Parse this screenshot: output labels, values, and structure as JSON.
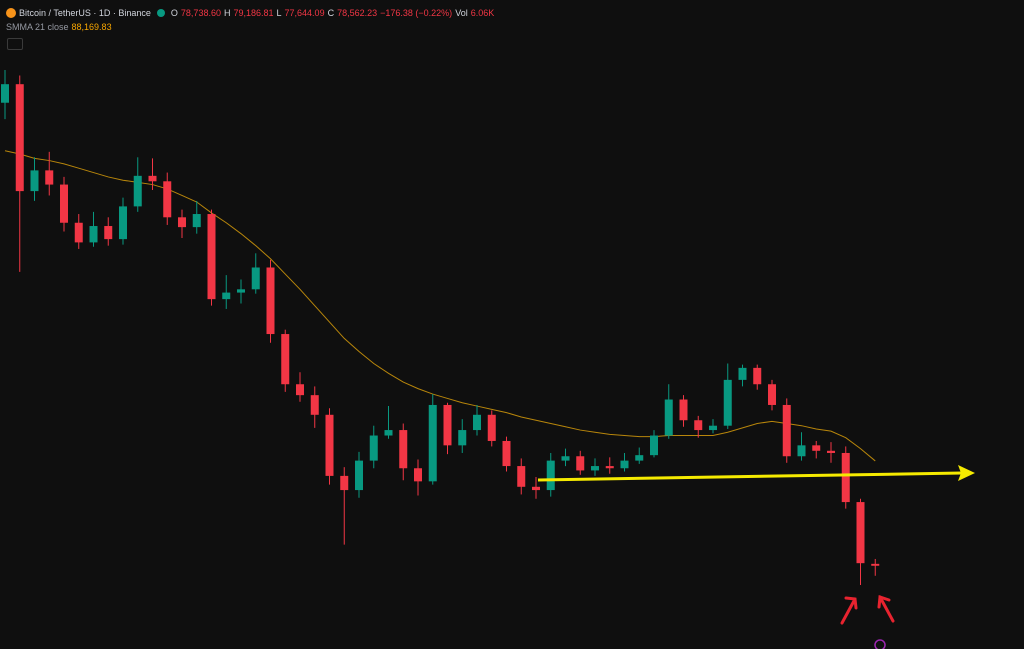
{
  "header": {
    "symbol": "Bitcoin / TetherUS · 1D · Binance",
    "o_label": "O",
    "open": "78,738.60",
    "h_label": "H",
    "high": "79,186.81",
    "l_label": "L",
    "low": "77,644.09",
    "c_label": "C",
    "close": "78,562.23",
    "change": "−176.38 (−0.22%)",
    "vol_label": "Vol",
    "volume": "6.06K",
    "indicator": "SMMA 21 close",
    "indicator_value": "88,169.83"
  },
  "chart_data": {
    "type": "candlestick",
    "up_color": "#089981",
    "down_color": "#f23645",
    "open": [
      121000,
      122700,
      112900,
      114800,
      113500,
      110000,
      108200,
      109700,
      108500,
      111500,
      114300,
      113800,
      110500,
      109600,
      110800,
      103000,
      103600,
      103900,
      105900,
      99800,
      95200,
      94200,
      92400,
      86800,
      85500,
      88200,
      90500,
      91000,
      87500,
      86300,
      93300,
      89600,
      91000,
      92400,
      90000,
      87700,
      85800,
      85500,
      88200,
      88600,
      87300,
      87700,
      87500,
      88200,
      88700,
      90500,
      93800,
      91900,
      91000,
      91400,
      95600,
      96700,
      95200,
      93300,
      88600,
      89600,
      89100,
      88900,
      84400,
      78738.6
    ],
    "high": [
      124000,
      123500,
      116000,
      116500,
      114200,
      110800,
      111000,
      110500,
      112300,
      116000,
      115900,
      114600,
      111200,
      112000,
      111200,
      105200,
      104800,
      107200,
      106600,
      100200,
      96300,
      95000,
      93000,
      87600,
      89000,
      91400,
      93200,
      91600,
      88300,
      94300,
      93500,
      92000,
      93300,
      92800,
      90400,
      88400,
      86700,
      88900,
      89300,
      89100,
      88400,
      88500,
      88900,
      89400,
      91000,
      95200,
      94200,
      92300,
      92000,
      97100,
      97000,
      97000,
      95600,
      93900,
      90800,
      90000,
      89900,
      89500,
      84700,
      79186.81
    ],
    "low": [
      119500,
      105500,
      112000,
      112500,
      109200,
      107600,
      107800,
      107900,
      108000,
      111000,
      113000,
      109800,
      108600,
      109000,
      102400,
      102100,
      102600,
      103500,
      99000,
      94500,
      93600,
      91200,
      86000,
      80500,
      84800,
      87500,
      90200,
      86400,
      85000,
      86000,
      88800,
      88900,
      90500,
      89500,
      87200,
      85100,
      84700,
      84900,
      87700,
      86900,
      86800,
      87000,
      87200,
      87900,
      88500,
      90200,
      91300,
      90300,
      90700,
      91100,
      95000,
      94700,
      92800,
      88000,
      88200,
      88400,
      88000,
      83800,
      76800,
      77644.09
    ],
    "close": [
      122700,
      112900,
      114800,
      113500,
      110000,
      108200,
      109700,
      108500,
      111500,
      114300,
      113800,
      110500,
      109600,
      110800,
      103000,
      103600,
      103900,
      105900,
      99800,
      95200,
      94200,
      92400,
      86800,
      85500,
      88200,
      90500,
      91000,
      87500,
      86300,
      93300,
      89600,
      91000,
      92400,
      90000,
      87700,
      85800,
      85500,
      88200,
      88600,
      87300,
      87700,
      87500,
      88200,
      88700,
      90500,
      93800,
      91900,
      91000,
      91400,
      95600,
      96700,
      95200,
      93300,
      88600,
      89600,
      89100,
      88900,
      84400,
      78800,
      78562.23
    ],
    "smma": {
      "color": "#b8860b",
      "values": [
        116600,
        116300,
        115900,
        115700,
        115400,
        115000,
        114600,
        114200,
        113900,
        113700,
        113500,
        113100,
        112500,
        111900,
        110900,
        110000,
        109000,
        107900,
        106700,
        105300,
        103900,
        102400,
        100900,
        99400,
        98200,
        97100,
        96200,
        95400,
        94800,
        94300,
        93900,
        93500,
        93200,
        92900,
        92600,
        92200,
        91900,
        91600,
        91300,
        91000,
        90800,
        90600,
        90500,
        90400,
        90400,
        90500,
        90500,
        90500,
        90500,
        90800,
        91200,
        91600,
        91800,
        91600,
        91400,
        91100,
        90900,
        90300,
        89300,
        88169.83
      ]
    }
  }
}
